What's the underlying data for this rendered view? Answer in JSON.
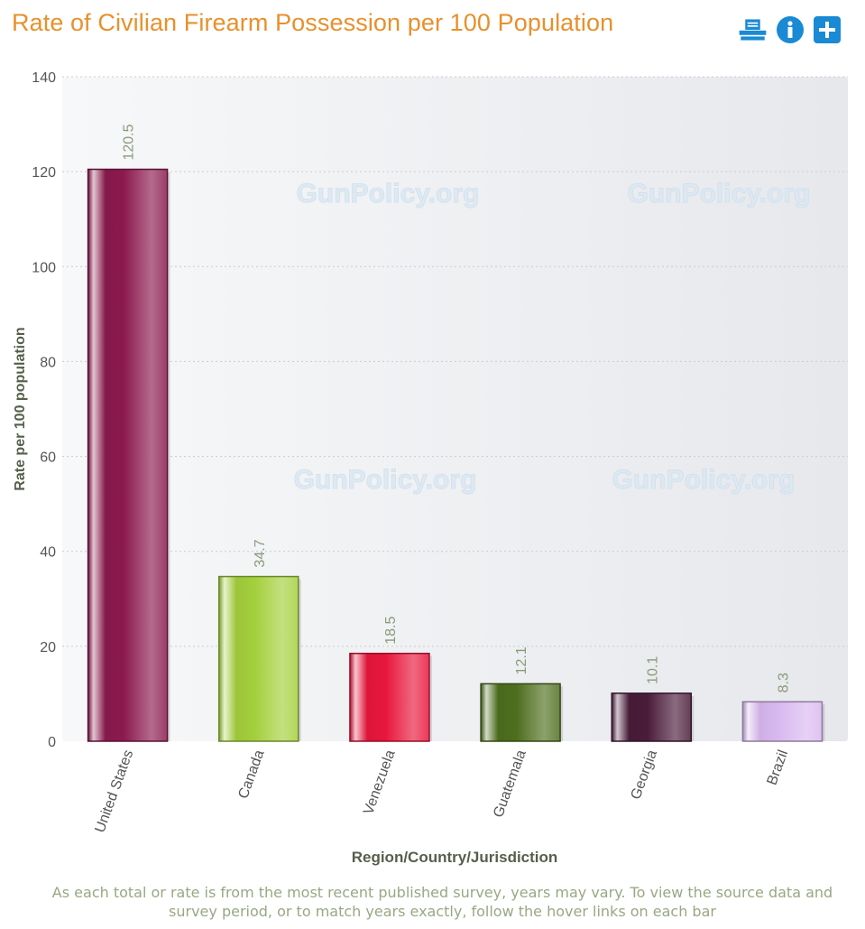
{
  "header": {
    "title": "Rate of Civilian Firearm Possession per 100 Population"
  },
  "toolbar": {
    "icons": [
      "print-icon",
      "info-icon",
      "add-icon"
    ],
    "accent": "#1a8ad4"
  },
  "watermark": "GunPolicy.org",
  "footnote": "As each total or rate is from the most recent published survey, years may vary. To view the source data and survey period, or to match years exactly, follow the hover links on each bar",
  "chart_data": {
    "type": "bar",
    "xlabel": "Region/Country/Jurisdiction",
    "ylabel": "Rate per 100 population",
    "ylim": [
      0,
      140
    ],
    "yticks": [
      0,
      20,
      40,
      60,
      80,
      100,
      120,
      140
    ],
    "grid": true,
    "categories": [
      "United States",
      "Canada",
      "Venezuela",
      "Guatemala",
      "Georgia",
      "Brazil"
    ],
    "values": [
      120.5,
      34.7,
      18.5,
      12.1,
      10.1,
      8.3
    ],
    "value_labels": [
      "120.5",
      "34.7",
      "18.5",
      "12.1",
      "10.1",
      "8.3"
    ],
    "colors": [
      "#8b1a4e",
      "#a4cf3c",
      "#e8163c",
      "#4e6e1e",
      "#4a1c3a",
      "#d9b8f0"
    ]
  }
}
